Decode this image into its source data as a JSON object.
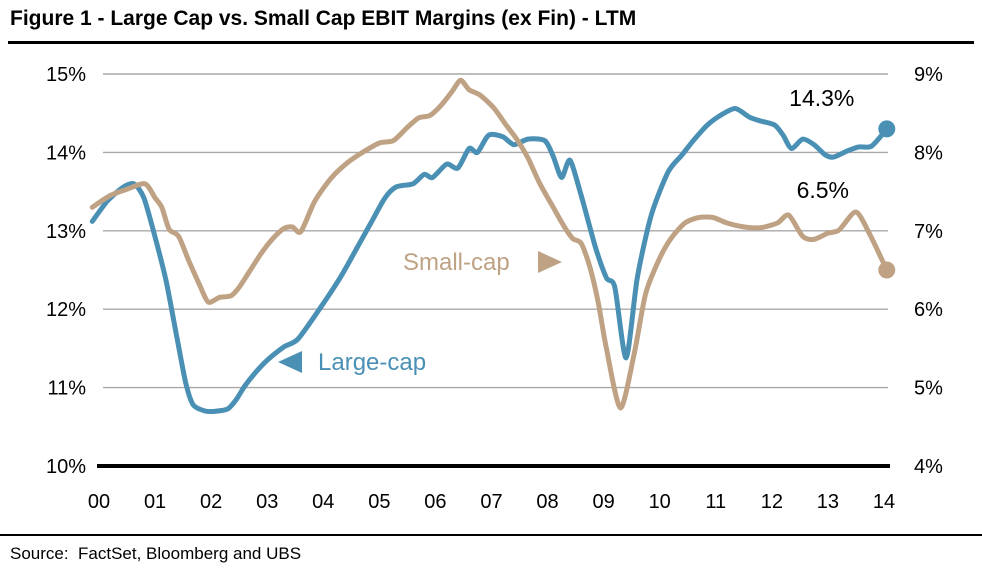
{
  "header": {
    "title": "Figure 1 - Large Cap vs. Small Cap EBIT Margins (ex Fin) - LTM"
  },
  "footer": {
    "source": "Source:  FactSet, Bloomberg and UBS"
  },
  "chart_data": {
    "type": "line",
    "title": "Figure 1 - Large Cap vs. Small Cap EBIT Margins (ex Fin) - LTM",
    "grid": true,
    "legend_position": "inline-with-arrows",
    "x_axis": {
      "tick_labels": [
        "00",
        "01",
        "02",
        "03",
        "04",
        "05",
        "06",
        "07",
        "08",
        "09",
        "10",
        "11",
        "12",
        "13",
        "14"
      ],
      "tick_values": [
        0,
        1,
        2,
        3,
        4,
        5,
        6,
        7,
        8,
        9,
        10,
        11,
        12,
        13,
        14
      ]
    },
    "left_axis": {
      "unit": "%",
      "range": [
        10,
        15
      ],
      "tick_values": [
        15,
        14,
        13,
        12,
        11,
        10
      ],
      "tick_labels": [
        "15%",
        "14%",
        "13%",
        "12%",
        "11%",
        "10%"
      ]
    },
    "right_axis": {
      "unit": "%",
      "range": [
        4,
        9
      ],
      "tick_values": [
        9,
        8,
        7,
        6,
        5,
        4
      ],
      "tick_labels": [
        "9%",
        "8%",
        "7%",
        "6%",
        "5%",
        "4%"
      ]
    },
    "series": [
      {
        "name": "Large-cap",
        "axis": "left",
        "color": "#4a90b5",
        "last_value_label": "14.3%",
        "arrow": "left",
        "points": [
          [
            -0.12,
            13.12
          ],
          [
            0.15,
            13.38
          ],
          [
            0.42,
            13.55
          ],
          [
            0.62,
            13.6
          ],
          [
            0.8,
            13.42
          ],
          [
            1.0,
            12.92
          ],
          [
            1.2,
            12.35
          ],
          [
            1.4,
            11.6
          ],
          [
            1.55,
            11.05
          ],
          [
            1.68,
            10.78
          ],
          [
            1.9,
            10.7
          ],
          [
            2.1,
            10.7
          ],
          [
            2.3,
            10.73
          ],
          [
            2.45,
            10.85
          ],
          [
            2.6,
            11.02
          ],
          [
            2.8,
            11.2
          ],
          [
            3.0,
            11.35
          ],
          [
            3.3,
            11.52
          ],
          [
            3.55,
            11.62
          ],
          [
            3.95,
            12.02
          ],
          [
            4.3,
            12.4
          ],
          [
            4.6,
            12.78
          ],
          [
            4.85,
            13.1
          ],
          [
            5.1,
            13.42
          ],
          [
            5.3,
            13.56
          ],
          [
            5.6,
            13.6
          ],
          [
            5.8,
            13.72
          ],
          [
            5.95,
            13.68
          ],
          [
            6.2,
            13.85
          ],
          [
            6.4,
            13.8
          ],
          [
            6.6,
            14.05
          ],
          [
            6.75,
            14.0
          ],
          [
            6.95,
            14.22
          ],
          [
            7.2,
            14.2
          ],
          [
            7.4,
            14.1
          ],
          [
            7.65,
            14.17
          ],
          [
            7.95,
            14.15
          ],
          [
            8.1,
            13.95
          ],
          [
            8.25,
            13.68
          ],
          [
            8.4,
            13.9
          ],
          [
            8.6,
            13.45
          ],
          [
            8.85,
            12.8
          ],
          [
            9.05,
            12.4
          ],
          [
            9.2,
            12.28
          ],
          [
            9.4,
            11.38
          ],
          [
            9.6,
            12.4
          ],
          [
            9.85,
            13.2
          ],
          [
            10.15,
            13.75
          ],
          [
            10.4,
            13.97
          ],
          [
            10.6,
            14.15
          ],
          [
            10.85,
            14.35
          ],
          [
            11.1,
            14.48
          ],
          [
            11.35,
            14.56
          ],
          [
            11.6,
            14.45
          ],
          [
            11.8,
            14.4
          ],
          [
            12.05,
            14.35
          ],
          [
            12.2,
            14.22
          ],
          [
            12.35,
            14.05
          ],
          [
            12.55,
            14.17
          ],
          [
            12.75,
            14.1
          ],
          [
            12.95,
            13.97
          ],
          [
            13.1,
            13.94
          ],
          [
            13.35,
            14.02
          ],
          [
            13.55,
            14.07
          ],
          [
            13.78,
            14.08
          ],
          [
            14.05,
            14.3
          ]
        ]
      },
      {
        "name": "Small-cap",
        "axis": "right",
        "color": "#bfa284",
        "last_value_label": "6.5%",
        "arrow": "right",
        "points": [
          [
            -0.12,
            7.3
          ],
          [
            0.2,
            7.45
          ],
          [
            0.5,
            7.53
          ],
          [
            0.82,
            7.6
          ],
          [
            1.0,
            7.42
          ],
          [
            1.12,
            7.3
          ],
          [
            1.25,
            7.02
          ],
          [
            1.42,
            6.93
          ],
          [
            1.6,
            6.62
          ],
          [
            1.8,
            6.3
          ],
          [
            1.95,
            6.09
          ],
          [
            2.15,
            6.15
          ],
          [
            2.35,
            6.17
          ],
          [
            2.5,
            6.28
          ],
          [
            2.7,
            6.5
          ],
          [
            2.9,
            6.72
          ],
          [
            3.1,
            6.9
          ],
          [
            3.3,
            7.03
          ],
          [
            3.45,
            7.05
          ],
          [
            3.6,
            6.99
          ],
          [
            3.85,
            7.38
          ],
          [
            4.15,
            7.68
          ],
          [
            4.45,
            7.88
          ],
          [
            4.7,
            8.0
          ],
          [
            5.0,
            8.12
          ],
          [
            5.25,
            8.15
          ],
          [
            5.5,
            8.32
          ],
          [
            5.7,
            8.44
          ],
          [
            5.9,
            8.47
          ],
          [
            6.1,
            8.6
          ],
          [
            6.3,
            8.78
          ],
          [
            6.45,
            8.92
          ],
          [
            6.6,
            8.8
          ],
          [
            6.8,
            8.73
          ],
          [
            7.05,
            8.56
          ],
          [
            7.25,
            8.36
          ],
          [
            7.45,
            8.17
          ],
          [
            7.65,
            7.93
          ],
          [
            7.85,
            7.62
          ],
          [
            8.1,
            7.3
          ],
          [
            8.3,
            7.05
          ],
          [
            8.45,
            6.9
          ],
          [
            8.6,
            6.84
          ],
          [
            8.75,
            6.55
          ],
          [
            8.9,
            6.1
          ],
          [
            9.05,
            5.5
          ],
          [
            9.3,
            4.74
          ],
          [
            9.55,
            5.45
          ],
          [
            9.75,
            6.2
          ],
          [
            10.0,
            6.65
          ],
          [
            10.2,
            6.9
          ],
          [
            10.45,
            7.1
          ],
          [
            10.7,
            7.17
          ],
          [
            10.95,
            7.17
          ],
          [
            11.2,
            7.1
          ],
          [
            11.5,
            7.05
          ],
          [
            11.8,
            7.04
          ],
          [
            12.1,
            7.1
          ],
          [
            12.3,
            7.2
          ],
          [
            12.55,
            6.93
          ],
          [
            12.75,
            6.89
          ],
          [
            13.0,
            6.97
          ],
          [
            13.2,
            7.01
          ],
          [
            13.5,
            7.24
          ],
          [
            13.75,
            6.95
          ],
          [
            14.05,
            6.5
          ]
        ]
      }
    ],
    "annotations": [
      {
        "text": "14.3%",
        "series": "Large-cap",
        "color": "#000000"
      },
      {
        "text": "6.5%",
        "series": "Small-cap",
        "color": "#000000"
      }
    ],
    "colors": {
      "large_cap": "#4a90b5",
      "small_cap": "#bfa284",
      "gridline": "#a8a8a8",
      "axis_baseline": "#000000",
      "text": "#000000",
      "background": "#ffffff"
    }
  }
}
